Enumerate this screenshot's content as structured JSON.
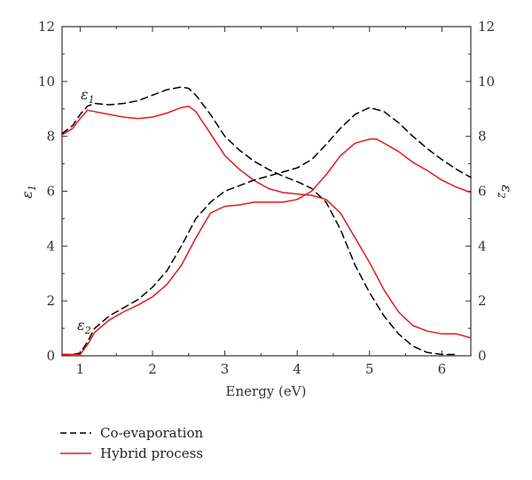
{
  "chart_data": {
    "type": "line",
    "xlabel": "Energy (eV)",
    "ylabel_left": "ε1",
    "ylabel_right": "ε2",
    "xlim": [
      0.75,
      6.4
    ],
    "ylim_left": [
      0,
      12
    ],
    "ylim_right": [
      0,
      12
    ],
    "x_ticks": [
      1,
      2,
      3,
      4,
      5,
      6
    ],
    "y_ticks": [
      0,
      2,
      4,
      6,
      8,
      10,
      12
    ],
    "grid": false,
    "legend_position": "bottom-left",
    "annotations": [
      {
        "text": "ε1",
        "x": 1.0,
        "y": 9.6
      },
      {
        "text": "ε2",
        "x": 1.0,
        "y": 1.0
      }
    ],
    "series": [
      {
        "name": "Co-evaporation",
        "quantity": "ε1",
        "color": "#000000",
        "dash": "dashed",
        "x": [
          0.75,
          0.9,
          1.0,
          1.1,
          1.2,
          1.4,
          1.6,
          1.8,
          2.0,
          2.2,
          2.4,
          2.5,
          2.6,
          2.8,
          3.0,
          3.2,
          3.4,
          3.6,
          3.8,
          4.0,
          4.2,
          4.4,
          4.6,
          4.8,
          5.0,
          5.2,
          5.4,
          5.6,
          5.8,
          6.0,
          6.2
        ],
        "y": [
          8.1,
          8.4,
          8.8,
          9.1,
          9.2,
          9.15,
          9.2,
          9.3,
          9.5,
          9.7,
          9.8,
          9.75,
          9.5,
          8.8,
          8.0,
          7.5,
          7.1,
          6.8,
          6.55,
          6.35,
          6.1,
          5.6,
          4.6,
          3.3,
          2.3,
          1.45,
          0.8,
          0.35,
          0.12,
          0.05,
          0.05
        ]
      },
      {
        "name": "Hybrid process",
        "quantity": "ε1",
        "color": "#e31a1c",
        "dash": "solid",
        "x": [
          0.75,
          0.9,
          1.0,
          1.1,
          1.2,
          1.4,
          1.6,
          1.8,
          2.0,
          2.2,
          2.4,
          2.5,
          2.6,
          2.8,
          3.0,
          3.2,
          3.4,
          3.6,
          3.8,
          4.0,
          4.2,
          4.4,
          4.6,
          4.8,
          5.0,
          5.2,
          5.4,
          5.6,
          5.8,
          6.0,
          6.2,
          6.4
        ],
        "y": [
          8.05,
          8.3,
          8.65,
          8.95,
          8.9,
          8.8,
          8.7,
          8.65,
          8.7,
          8.85,
          9.05,
          9.1,
          8.9,
          8.1,
          7.3,
          6.8,
          6.4,
          6.1,
          5.95,
          5.9,
          5.85,
          5.7,
          5.2,
          4.3,
          3.4,
          2.4,
          1.6,
          1.1,
          0.9,
          0.8,
          0.8,
          0.65
        ]
      },
      {
        "name": "Co-evaporation",
        "quantity": "ε2",
        "color": "#000000",
        "dash": "dashed",
        "x": [
          0.75,
          0.9,
          1.0,
          1.1,
          1.2,
          1.4,
          1.6,
          1.8,
          2.0,
          2.2,
          2.4,
          2.6,
          2.8,
          3.0,
          3.2,
          3.4,
          3.6,
          3.8,
          4.0,
          4.2,
          4.4,
          4.6,
          4.8,
          5.0,
          5.2,
          5.4,
          5.6,
          5.8,
          6.0,
          6.2,
          6.4
        ],
        "y": [
          0.05,
          0.05,
          0.1,
          0.5,
          1.0,
          1.45,
          1.75,
          2.05,
          2.5,
          3.1,
          4.0,
          5.0,
          5.6,
          6.0,
          6.2,
          6.4,
          6.55,
          6.7,
          6.85,
          7.15,
          7.7,
          8.3,
          8.8,
          9.05,
          8.9,
          8.5,
          8.0,
          7.55,
          7.15,
          6.8,
          6.5
        ]
      },
      {
        "name": "Hybrid process",
        "quantity": "ε2",
        "color": "#e31a1c",
        "dash": "solid",
        "x": [
          0.75,
          0.9,
          1.0,
          1.1,
          1.2,
          1.4,
          1.6,
          1.8,
          2.0,
          2.2,
          2.4,
          2.6,
          2.8,
          3.0,
          3.2,
          3.4,
          3.6,
          3.8,
          4.0,
          4.2,
          4.4,
          4.6,
          4.8,
          5.0,
          5.1,
          5.2,
          5.4,
          5.6,
          5.8,
          6.0,
          6.2,
          6.4
        ],
        "y": [
          0.05,
          0.05,
          0.05,
          0.4,
          0.85,
          1.3,
          1.6,
          1.85,
          2.15,
          2.6,
          3.3,
          4.3,
          5.2,
          5.45,
          5.5,
          5.6,
          5.6,
          5.6,
          5.7,
          6.0,
          6.6,
          7.3,
          7.75,
          7.9,
          7.9,
          7.75,
          7.45,
          7.05,
          6.75,
          6.4,
          6.15,
          5.95
        ]
      }
    ]
  }
}
